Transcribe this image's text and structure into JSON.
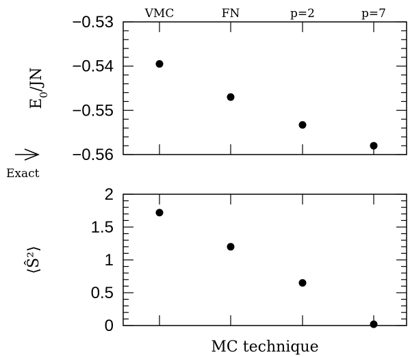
{
  "chart_data": [
    {
      "type": "scatter",
      "categories": [
        "VMC",
        "FN",
        "p=2",
        "p=7"
      ],
      "values": [
        -0.5395,
        -0.547,
        -0.5533,
        -0.558
      ],
      "ylim": [
        -0.56,
        -0.53
      ],
      "yticks": [
        "−0.53",
        "−0.54",
        "−0.55",
        "−0.56"
      ],
      "ylabel": "E0/JN",
      "xlabel": "",
      "annotation": "Exact",
      "exact_value": -0.56,
      "grid": false
    },
    {
      "type": "scatter",
      "categories": [
        "VMC",
        "FN",
        "p=2",
        "p=7"
      ],
      "values": [
        1.72,
        1.2,
        0.65,
        0.02
      ],
      "ylim": [
        0,
        2
      ],
      "yticks": [
        "2",
        "1.5",
        "1",
        "0.5",
        "0"
      ],
      "ylabel": "⟨Ŝ²⟩",
      "xlabel": "MC technique",
      "grid": false
    }
  ]
}
